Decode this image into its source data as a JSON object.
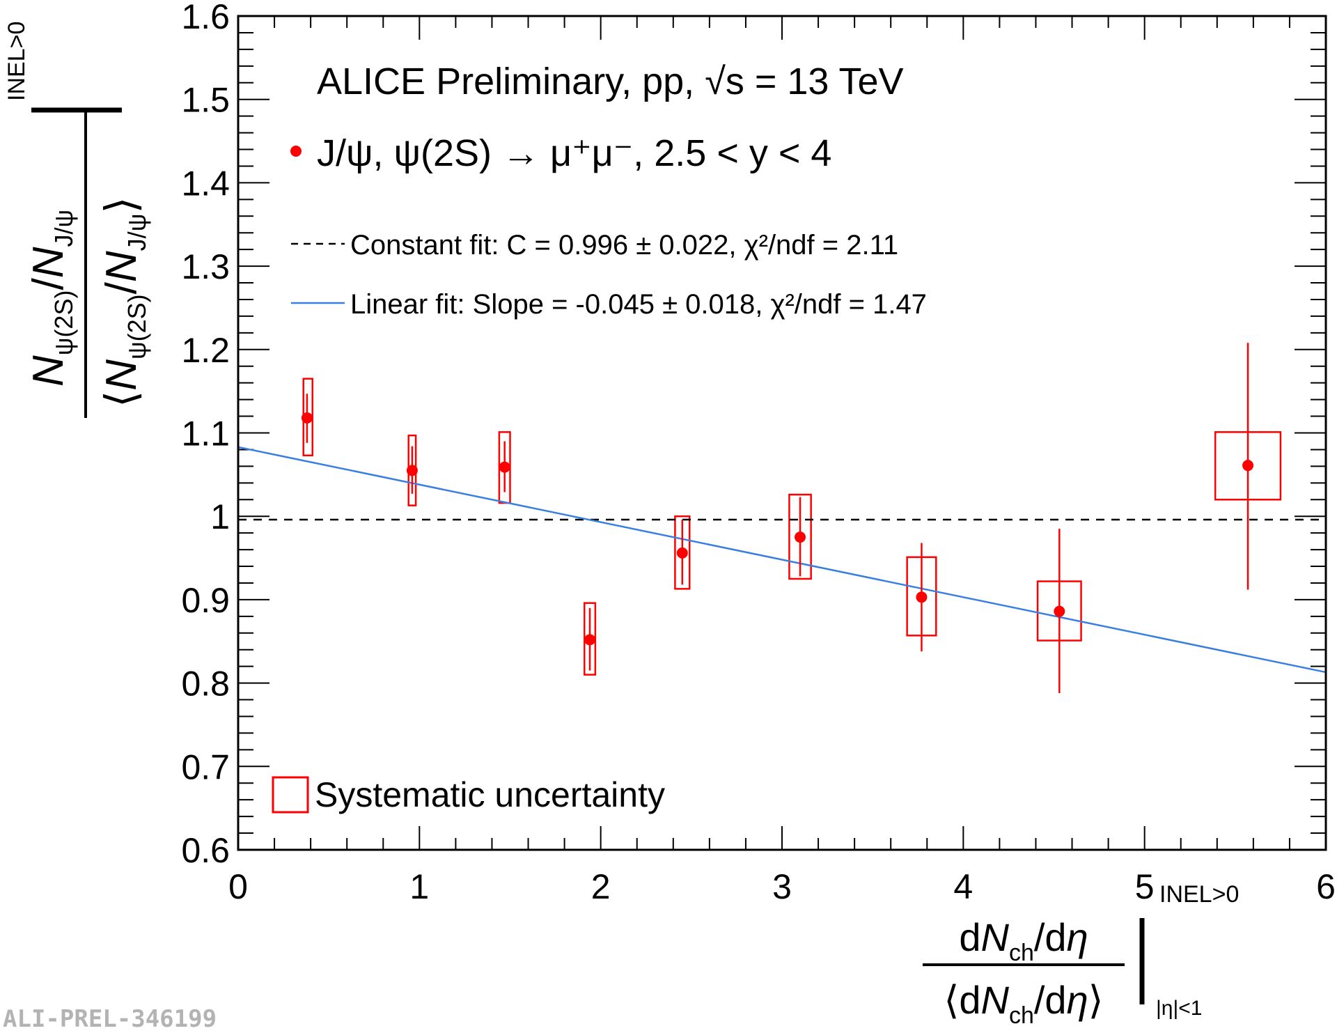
{
  "chart_data": {
    "type": "scatter",
    "title": "ALICE Preliminary, pp, √s = 13 TeV",
    "xlabel": {
      "num_pre": "d",
      "num_N": "N",
      "num_sub": "ch",
      "num_post": "/d",
      "num_eta": "η",
      "den_pre": "⟨d",
      "den_N": "N",
      "den_sub": "ch",
      "den_post": "/d",
      "den_eta": "η",
      "den_close": "⟩",
      "sup": "INEL>0",
      "sub": "|η|<1"
    },
    "ylabel": {
      "num_N1": "N",
      "num_sub1": "ψ(2S)",
      "num_slash": "/",
      "num_N2": "N",
      "num_sub2": "J/ψ",
      "den_open": "⟨",
      "den_N1": "N",
      "den_sub1": "ψ(2S)",
      "den_slash": "/",
      "den_N2": "N",
      "den_sub2": "J/ψ",
      "den_close": "⟩",
      "sup": "INEL>0"
    },
    "xlim": [
      0,
      6
    ],
    "ylim": [
      0.6,
      1.6
    ],
    "xticks": [
      0,
      1,
      2,
      3,
      4,
      5,
      6
    ],
    "xtick_labels": [
      "0",
      "1",
      "2",
      "3",
      "4",
      "5",
      "6"
    ],
    "yticks": [
      0.6,
      0.7,
      0.8,
      0.9,
      1.0,
      1.1,
      1.2,
      1.3,
      1.4,
      1.5,
      1.6
    ],
    "ytick_labels": [
      "0.6",
      "0.7",
      "0.8",
      "0.9",
      "1",
      "1.1",
      "1.2",
      "1.3",
      "1.4",
      "1.5",
      "1.6"
    ],
    "series": [
      {
        "name": "J/ψ, ψ(2S) → μ⁺μ⁻, 2.5 < y < 4",
        "color": "#ff0000",
        "points": [
          {
            "x": 0.38,
            "y": 1.118,
            "stat_lo": 1.088,
            "stat_hi": 1.147,
            "sys_lo": 1.073,
            "sys_hi": 1.165,
            "sys_xlo": 0.36,
            "sys_xhi": 0.41
          },
          {
            "x": 0.96,
            "y": 1.055,
            "stat_lo": 1.027,
            "stat_hi": 1.084,
            "sys_lo": 1.013,
            "sys_hi": 1.097,
            "sys_xlo": 0.94,
            "sys_xhi": 0.98
          },
          {
            "x": 1.47,
            "y": 1.059,
            "stat_lo": 1.029,
            "stat_hi": 1.09,
            "sys_lo": 1.016,
            "sys_hi": 1.101,
            "sys_xlo": 1.44,
            "sys_xhi": 1.5
          },
          {
            "x": 1.94,
            "y": 0.852,
            "stat_lo": 0.815,
            "stat_hi": 0.89,
            "sys_lo": 0.81,
            "sys_hi": 0.896,
            "sys_xlo": 1.91,
            "sys_xhi": 1.97
          },
          {
            "x": 2.45,
            "y": 0.956,
            "stat_lo": 0.918,
            "stat_hi": 0.996,
            "sys_lo": 0.913,
            "sys_hi": 1.0,
            "sys_xlo": 2.41,
            "sys_xhi": 2.49
          },
          {
            "x": 3.1,
            "y": 0.975,
            "stat_lo": 0.928,
            "stat_hi": 1.023,
            "sys_lo": 0.925,
            "sys_hi": 1.026,
            "sys_xlo": 3.04,
            "sys_xhi": 3.16
          },
          {
            "x": 3.77,
            "y": 0.903,
            "stat_lo": 0.838,
            "stat_hi": 0.968,
            "sys_lo": 0.857,
            "sys_hi": 0.951,
            "sys_xlo": 3.69,
            "sys_xhi": 3.85
          },
          {
            "x": 4.53,
            "y": 0.886,
            "stat_lo": 0.788,
            "stat_hi": 0.985,
            "sys_lo": 0.851,
            "sys_hi": 0.922,
            "sys_xlo": 4.41,
            "sys_xhi": 4.65
          },
          {
            "x": 5.57,
            "y": 1.061,
            "stat_lo": 0.912,
            "stat_hi": 1.208,
            "sys_lo": 1.02,
            "sys_hi": 1.101,
            "sys_xlo": 5.39,
            "sys_xhi": 5.75
          }
        ]
      }
    ],
    "fits": [
      {
        "name": "Constant fit",
        "label": "Constant fit: C = 0.996 ± 0.022, χ²/ndf = 2.11",
        "value": 0.996,
        "color": "#000000",
        "style": "dashed"
      },
      {
        "name": "Linear fit",
        "label": "Linear fit: Slope = -0.045 ± 0.018, χ²/ndf = 1.47",
        "intercept": 1.083,
        "slope": -0.045,
        "color": "#3a7fe0",
        "style": "solid"
      }
    ],
    "legend": {
      "title": "ALICE Preliminary, pp, √s = 13 TeV",
      "series_label": "J/ψ, ψ(2S) → μ⁺μ⁻, 2.5 < y < 4",
      "const_label": "Constant fit: C = 0.996 ± 0.022, χ²/ndf = 2.11",
      "linear_label": "Linear fit: Slope = -0.045 ± 0.018, χ²/ndf = 1.47",
      "syst_label": "Systematic uncertainty",
      "position": "top-left"
    }
  },
  "watermark": "ALI-PREL-346199"
}
